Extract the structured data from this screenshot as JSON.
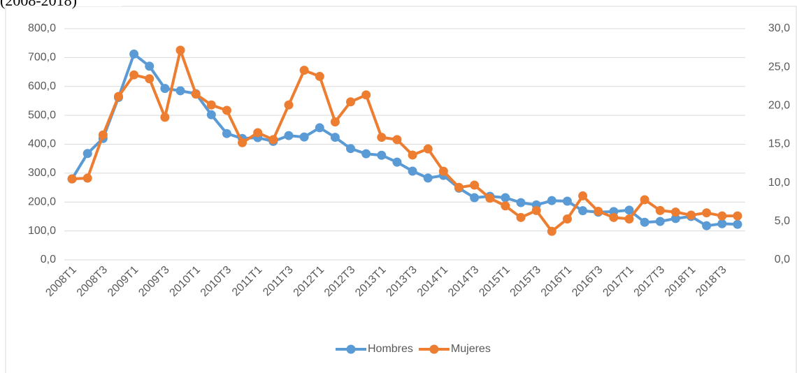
{
  "chart_data": {
    "type": "line",
    "subtitle": "(2008-2018)",
    "categories": [
      "2008T1",
      null,
      "2008T3",
      null,
      "2009T1",
      null,
      "2009T3",
      null,
      "2010T1",
      null,
      "2010T3",
      null,
      "2011T1",
      null,
      "2011T3",
      null,
      "2012T1",
      null,
      "2012T3",
      null,
      "2013T1",
      null,
      "2013T3",
      null,
      "2014T1",
      null,
      "2014T3",
      null,
      "2015T1",
      null,
      "2015T3",
      null,
      "2016T1",
      null,
      "2016T3",
      null,
      "2017T1",
      null,
      "2017T3",
      null,
      "2018T1",
      null,
      "2018T3",
      null
    ],
    "series": [
      {
        "name": "Hombres",
        "color": "#5b9bd5",
        "axis": "y",
        "values": [
          280,
          368,
          420,
          562,
          712,
          670,
          593,
          585,
          575,
          502,
          437,
          420,
          423,
          410,
          430,
          425,
          457,
          424,
          385,
          367,
          362,
          338,
          307,
          283,
          292,
          248,
          215,
          220,
          215,
          198,
          190,
          205,
          203,
          170,
          165,
          167,
          172,
          130,
          133,
          143,
          150,
          118,
          125,
          123
        ]
      },
      {
        "name": "Mujeres",
        "color": "#ed7d31",
        "axis": "y2",
        "values": [
          10.5,
          10.6,
          16.2,
          21.2,
          24.0,
          23.5,
          18.5,
          27.2,
          21.5,
          20.1,
          19.4,
          15.2,
          16.5,
          15.6,
          20.1,
          24.6,
          23.8,
          17.9,
          20.5,
          21.4,
          15.9,
          15.6,
          13.6,
          14.4,
          11.5,
          9.4,
          9.7,
          8.0,
          7.0,
          5.5,
          6.4,
          3.7,
          5.3,
          8.3,
          6.3,
          5.5,
          5.3,
          7.8,
          6.4,
          6.2,
          5.8,
          6.1,
          5.7,
          5.7
        ]
      }
    ],
    "ylim": [
      0,
      800
    ],
    "yticks": [
      {
        "value": 0,
        "label": "0,0"
      },
      {
        "value": 100,
        "label": "100,0"
      },
      {
        "value": 200,
        "label": "200,0"
      },
      {
        "value": 300,
        "label": "300,0"
      },
      {
        "value": 400,
        "label": "400,0"
      },
      {
        "value": 500,
        "label": "500,0"
      },
      {
        "value": 600,
        "label": "600,0"
      },
      {
        "value": 700,
        "label": "700,0"
      },
      {
        "value": 800,
        "label": "800,0"
      }
    ],
    "y2lim": [
      0,
      30
    ],
    "y2ticks": [
      {
        "value": 0,
        "label": "0,0"
      },
      {
        "value": 5,
        "label": "5,0"
      },
      {
        "value": 10,
        "label": "10,0"
      },
      {
        "value": 15,
        "label": "15,0"
      },
      {
        "value": 20,
        "label": "20,0"
      },
      {
        "value": 25,
        "label": "25,0"
      },
      {
        "value": 30,
        "label": "30,0"
      }
    ],
    "grid": true,
    "legend": "bottom"
  }
}
